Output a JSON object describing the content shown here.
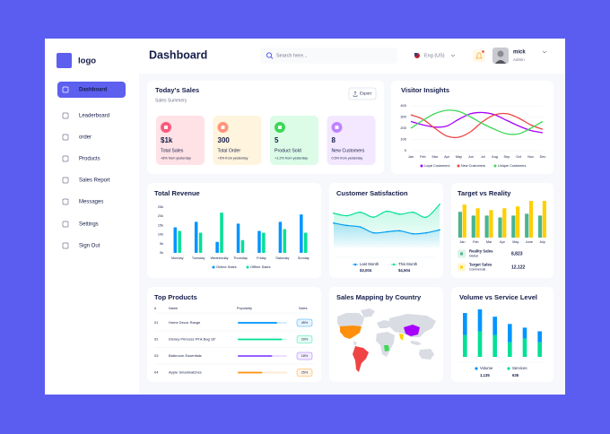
{
  "sidebar": {
    "logo": "logo",
    "menu": [
      "Dashboard",
      "Leaderboard",
      "order",
      "Products",
      "Sales Report",
      "Messages",
      "Settings",
      "Sign Out"
    ]
  },
  "header": {
    "title": "Dashboard",
    "search": "Search here...",
    "language": "Eng (US)",
    "user": "mick",
    "role": "Admin"
  },
  "todays_sales": {
    "title": "Today's Sales",
    "subtitle": "Sales Summery",
    "export": "Export",
    "cards": [
      {
        "value": "$1k",
        "label": "Total Sales",
        "change": "+8% from yesterday",
        "color": "#ffe2e5",
        "icon_color": "#fa5a7d"
      },
      {
        "value": "300",
        "label": "Total Order",
        "change": "+5% from yesterday",
        "color": "#fff4de",
        "icon_color": "#ff947a"
      },
      {
        "value": "5",
        "label": "Product Sold",
        "change": "+1.2% from yesterday",
        "color": "#dcfce7",
        "icon_color": "#3cd856"
      },
      {
        "value": "8",
        "label": "New Customers",
        "change": "0.5% from yesterday",
        "color": "#f3e8ff",
        "icon_color": "#bf83ff"
      }
    ]
  },
  "top_products": {
    "title": "Top Products",
    "columns": [
      "#",
      "Name",
      "Popularity",
      "Sales"
    ],
    "rows": [
      {
        "rank": "01",
        "name": "Home Decor Range",
        "popularity": 80,
        "sales": "45%",
        "color": "#0095ff"
      },
      {
        "rank": "02",
        "name": "Disney Princess Pink Bag 18\"",
        "popularity": 90,
        "sales": "29%",
        "color": "#00e096"
      },
      {
        "rank": "03",
        "name": "Bathroom Essentials",
        "popularity": 70,
        "sales": "18%",
        "color": "#884dff"
      },
      {
        "rank": "04",
        "name": "Apple Smartwatches",
        "popularity": 50,
        "sales": "25%",
        "color": "#ff8f0d"
      }
    ]
  },
  "sales_mapping": {
    "title": "Sales Mapping by Country"
  },
  "chart_data": [
    {
      "type": "line",
      "title": "Visitor Insights",
      "x": [
        "Jan",
        "Feb",
        "Mar",
        "Apr",
        "May",
        "Jun",
        "Jul",
        "Aug",
        "Sep",
        "Oct",
        "Nov",
        "Dec"
      ],
      "ylim": [
        0,
        400
      ],
      "yticks": [
        0,
        100,
        200,
        300,
        400
      ],
      "grid": true,
      "series": [
        {
          "name": "Loyal Customers",
          "color": "#a700ff",
          "values": [
            260,
            230,
            210,
            220,
            280,
            330,
            340,
            320,
            270,
            220,
            180,
            160
          ]
        },
        {
          "name": "New Customers",
          "color": "#ef4444",
          "values": [
            320,
            280,
            200,
            130,
            120,
            170,
            260,
            320,
            330,
            290,
            230,
            190
          ]
        },
        {
          "name": "Unique Customers",
          "color": "#3cd856",
          "values": [
            200,
            270,
            330,
            360,
            350,
            300,
            240,
            190,
            150,
            150,
            200,
            260
          ]
        }
      ]
    },
    {
      "type": "bar",
      "title": "Total Revenue",
      "categories": [
        "Monday",
        "Tuesday",
        "Wednesday",
        "Thursday",
        "Friday",
        "Saturday",
        "Sunday"
      ],
      "ylim": [
        0,
        25
      ],
      "yticks": [
        {
          "value": 0,
          "label": "0k"
        },
        {
          "value": 5,
          "label": "5k"
        },
        {
          "value": 10,
          "label": "10k"
        },
        {
          "value": 15,
          "label": "15k"
        },
        {
          "value": 20,
          "label": "20k"
        },
        {
          "value": 25,
          "label": "25k"
        }
      ],
      "series": [
        {
          "name": "Online Sales",
          "color": "#0095ff",
          "values": [
            14,
            17,
            6,
            16,
            12,
            17,
            21
          ]
        },
        {
          "name": "Offline Sales",
          "color": "#00e096",
          "values": [
            12,
            11,
            22,
            7,
            11,
            13,
            11
          ]
        }
      ]
    },
    {
      "type": "area",
      "title": "Customer Satisfaction",
      "series": [
        {
          "name": "Last Month",
          "color": "#0095ff",
          "values": [
            50,
            45,
            42,
            30,
            32,
            34,
            28,
            30,
            36
          ],
          "total": "$3,004"
        },
        {
          "name": "This Month",
          "color": "#07e098",
          "values": [
            70,
            65,
            72,
            62,
            74,
            68,
            72,
            62,
            88
          ],
          "total": "$4,504"
        }
      ]
    },
    {
      "type": "bar",
      "title": "Target vs Reality",
      "categories": [
        "Jan",
        "Feb",
        "Mar",
        "Apr",
        "May",
        "June",
        "July"
      ],
      "series": [
        {
          "name": "Reality Sales",
          "subtitle": "Global",
          "color": "#4ab58e",
          "values": [
            7,
            6,
            6,
            5.5,
            6,
            6.5,
            6
          ],
          "total": "8,823"
        },
        {
          "name": "Target Sales",
          "subtitle": "Commercial",
          "color": "#ffcf00",
          "values": [
            9,
            8,
            7.5,
            8,
            8.5,
            10,
            10
          ],
          "total": "12,122"
        }
      ]
    },
    {
      "type": "stacked_bar",
      "title": "Volume vs Service Level",
      "series": [
        {
          "name": "Volume",
          "color": "#0095ff",
          "values": [
            6,
            6,
            5,
            5,
            3,
            3
          ],
          "total": "1,135"
        },
        {
          "name": "Services",
          "color": "#00e096",
          "values": [
            6,
            7,
            6,
            4,
            5,
            4
          ],
          "total": "635"
        }
      ]
    }
  ]
}
